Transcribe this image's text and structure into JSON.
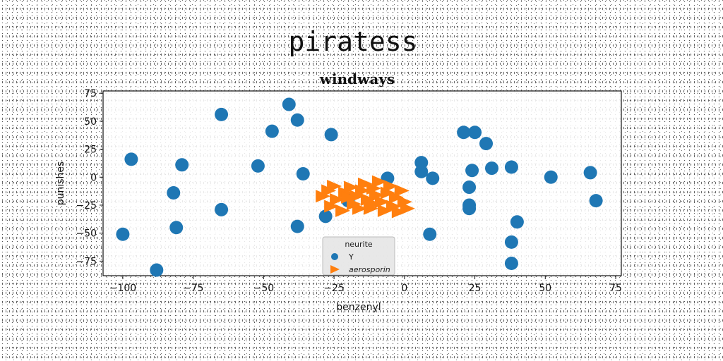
{
  "suptitle": "piratess",
  "chart_data": {
    "type": "scatter",
    "title": "windways",
    "xlabel": "benzenyl",
    "ylabel": "punishes",
    "xlim": [
      -107,
      77
    ],
    "ylim": [
      -88,
      77
    ],
    "xticks": [
      -100,
      -75,
      -50,
      -25,
      0,
      25,
      50,
      75
    ],
    "yticks": [
      -75,
      -50,
      -25,
      0,
      25,
      50,
      75
    ],
    "tick_labels_x": [
      "−100",
      "−75",
      "−50",
      "−25",
      "0",
      "25",
      "50",
      "75"
    ],
    "tick_labels_y": [
      "−75",
      "−50",
      "−25",
      "0",
      "25",
      "50",
      "75"
    ],
    "grid": false,
    "legend": {
      "title": "neurite",
      "position": "lower-center"
    },
    "series": [
      {
        "name": "Y",
        "marker": "circle",
        "color": "#1f77b4",
        "points": [
          [
            -100,
            -51
          ],
          [
            -97,
            16
          ],
          [
            -88,
            -83
          ],
          [
            -82,
            -14
          ],
          [
            -81,
            -45
          ],
          [
            -79,
            11
          ],
          [
            -65,
            56
          ],
          [
            -65,
            -29
          ],
          [
            -52,
            10
          ],
          [
            -47,
            41
          ],
          [
            -41,
            65
          ],
          [
            -38,
            51
          ],
          [
            -38,
            -44
          ],
          [
            -36,
            3
          ],
          [
            -26,
            38
          ],
          [
            -28,
            -35
          ],
          [
            -20,
            -21
          ],
          [
            -6,
            -1
          ],
          [
            6,
            13
          ],
          [
            6,
            5
          ],
          [
            10,
            -1
          ],
          [
            9,
            -51
          ],
          [
            21,
            40
          ],
          [
            25,
            40
          ],
          [
            29,
            30
          ],
          [
            23,
            -9
          ],
          [
            24,
            6
          ],
          [
            31,
            8
          ],
          [
            23,
            -25
          ],
          [
            23,
            -28
          ],
          [
            38,
            9
          ],
          [
            40,
            -40
          ],
          [
            38,
            -58
          ],
          [
            38,
            -77
          ],
          [
            52,
            0
          ],
          [
            66,
            4
          ],
          [
            68,
            -21
          ]
        ]
      },
      {
        "name": "aerosporin",
        "marker": "triangle-right",
        "color": "#ff7f0e",
        "points": [
          [
            -29,
            -17
          ],
          [
            -27,
            -12
          ],
          [
            -26,
            -26
          ],
          [
            -25,
            -8
          ],
          [
            -24,
            -20
          ],
          [
            -22,
            -30
          ],
          [
            -21,
            -14
          ],
          [
            -19,
            -9
          ],
          [
            -18,
            -24
          ],
          [
            -17,
            -17
          ],
          [
            -16,
            -28
          ],
          [
            -15,
            -12
          ],
          [
            -14,
            -6
          ],
          [
            -13,
            -20
          ],
          [
            -12,
            -28
          ],
          [
            -11,
            -10
          ],
          [
            -10,
            -16
          ],
          [
            -9,
            -4
          ],
          [
            -8,
            -22
          ],
          [
            -7,
            -30
          ],
          [
            -6,
            -14
          ],
          [
            -5,
            -8
          ],
          [
            -4,
            -26
          ],
          [
            -3,
            -18
          ],
          [
            -2,
            -31
          ],
          [
            -1,
            -12
          ],
          [
            0,
            -22
          ],
          [
            1,
            -28
          ],
          [
            -20,
            -18
          ],
          [
            -11,
            -24
          ]
        ]
      }
    ]
  }
}
